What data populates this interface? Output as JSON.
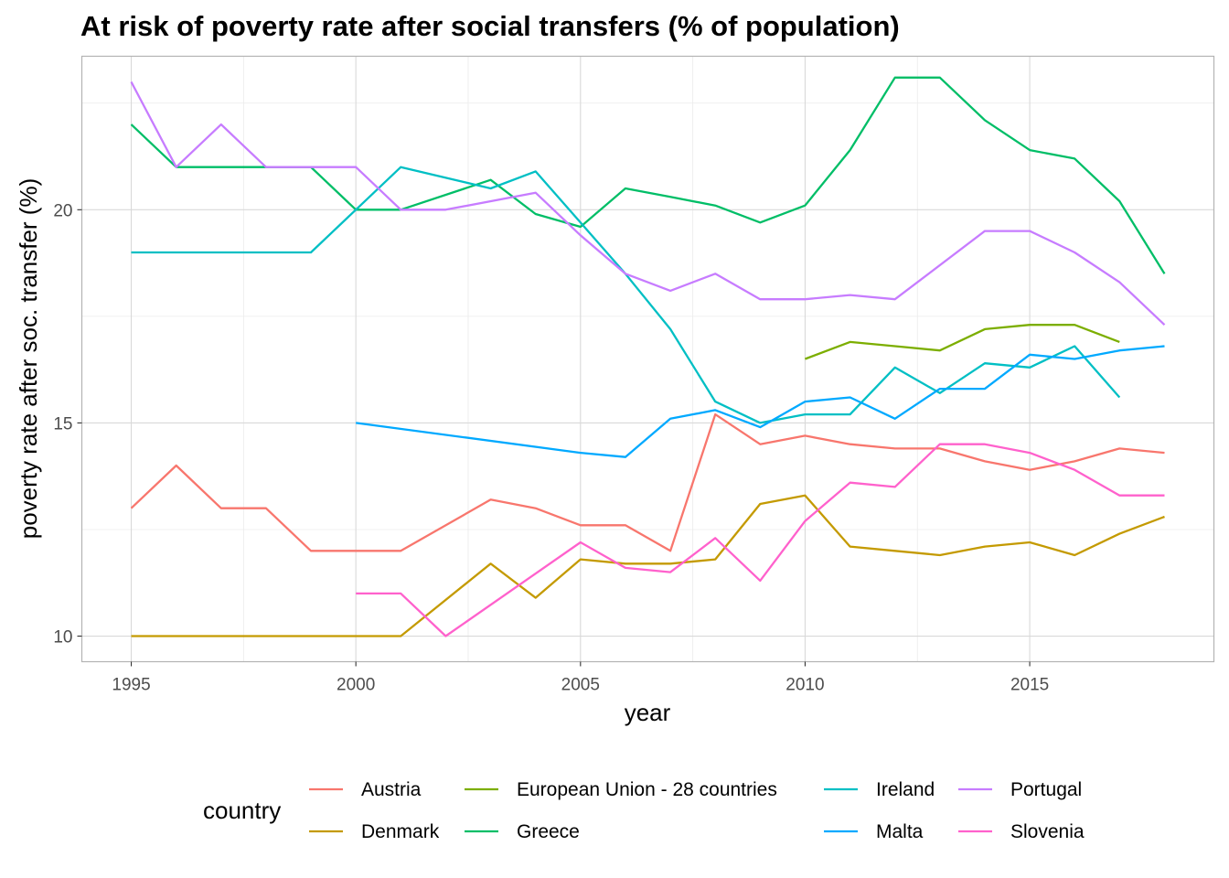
{
  "chart_data": {
    "type": "line",
    "title": "At risk of poverty rate after social transfers (% of population)",
    "xlabel": "year",
    "ylabel": "poverty rate after soc. transfer (%)",
    "x_ticks": [
      1995,
      2000,
      2005,
      2010,
      2015
    ],
    "y_ticks": [
      10,
      15,
      20
    ],
    "xlim": [
      1993.9,
      2019.1
    ],
    "ylim": [
      9.4,
      23.6
    ],
    "grid": true,
    "legend": {
      "title": "country",
      "position": "bottom"
    },
    "series": [
      {
        "name": "Austria",
        "color": "#F8766D",
        "points": [
          [
            1995,
            13
          ],
          [
            1996,
            14
          ],
          [
            1997,
            13
          ],
          [
            1998,
            13
          ],
          [
            1999,
            12
          ],
          [
            2000,
            12
          ],
          [
            2001,
            12
          ],
          [
            2003,
            13.2
          ],
          [
            2004,
            13
          ],
          [
            2005,
            12.6
          ],
          [
            2006,
            12.6
          ],
          [
            2007,
            12
          ],
          [
            2008,
            15.2
          ],
          [
            2009,
            14.5
          ],
          [
            2010,
            14.7
          ],
          [
            2011,
            14.5
          ],
          [
            2012,
            14.4
          ],
          [
            2013,
            14.4
          ],
          [
            2014,
            14.1
          ],
          [
            2015,
            13.9
          ],
          [
            2016,
            14.1
          ],
          [
            2017,
            14.4
          ],
          [
            2018,
            14.3
          ]
        ]
      },
      {
        "name": "Denmark",
        "color": "#C49A00",
        "points": [
          [
            1995,
            10
          ],
          [
            1996,
            10
          ],
          [
            1997,
            10
          ],
          [
            1998,
            10
          ],
          [
            1999,
            10
          ],
          [
            2000,
            10
          ],
          [
            2001,
            10
          ],
          [
            2003,
            11.7
          ],
          [
            2004,
            10.9
          ],
          [
            2005,
            11.8
          ],
          [
            2006,
            11.7
          ],
          [
            2007,
            11.7
          ],
          [
            2008,
            11.8
          ],
          [
            2009,
            13.1
          ],
          [
            2010,
            13.3
          ],
          [
            2011,
            12.1
          ],
          [
            2012,
            12
          ],
          [
            2013,
            11.9
          ],
          [
            2014,
            12.1
          ],
          [
            2015,
            12.2
          ],
          [
            2016,
            11.9
          ],
          [
            2017,
            12.4
          ],
          [
            2018,
            12.8
          ]
        ]
      },
      {
        "name": "European Union - 28 countries",
        "color": "#7CAE00",
        "points": [
          [
            2010,
            16.5
          ],
          [
            2011,
            16.9
          ],
          [
            2012,
            16.8
          ],
          [
            2013,
            16.7
          ],
          [
            2014,
            17.2
          ],
          [
            2015,
            17.3
          ],
          [
            2016,
            17.3
          ],
          [
            2017,
            16.9
          ]
        ]
      },
      {
        "name": "Greece",
        "color": "#00BE67",
        "points": [
          [
            1995,
            22
          ],
          [
            1996,
            21
          ],
          [
            1997,
            21
          ],
          [
            1998,
            21
          ],
          [
            1999,
            21
          ],
          [
            2000,
            20
          ],
          [
            2001,
            20
          ],
          [
            2003,
            20.7
          ],
          [
            2004,
            19.9
          ],
          [
            2005,
            19.6
          ],
          [
            2006,
            20.5
          ],
          [
            2007,
            20.3
          ],
          [
            2008,
            20.1
          ],
          [
            2009,
            19.7
          ],
          [
            2010,
            20.1
          ],
          [
            2011,
            21.4
          ],
          [
            2012,
            23.1
          ],
          [
            2013,
            23.1
          ],
          [
            2014,
            22.1
          ],
          [
            2015,
            21.4
          ],
          [
            2016,
            21.2
          ],
          [
            2017,
            20.2
          ],
          [
            2018,
            18.5
          ]
        ]
      },
      {
        "name": "Ireland",
        "color": "#00BFC4",
        "points": [
          [
            1995,
            19
          ],
          [
            1996,
            19
          ],
          [
            1997,
            19
          ],
          [
            1998,
            19
          ],
          [
            1999,
            19
          ],
          [
            2000,
            20
          ],
          [
            2001,
            21
          ],
          [
            2003,
            20.5
          ],
          [
            2004,
            20.9
          ],
          [
            2005,
            19.7
          ],
          [
            2006,
            18.5
          ],
          [
            2007,
            17.2
          ],
          [
            2008,
            15.5
          ],
          [
            2009,
            15
          ],
          [
            2010,
            15.2
          ],
          [
            2011,
            15.2
          ],
          [
            2012,
            16.3
          ],
          [
            2013,
            15.7
          ],
          [
            2014,
            16.4
          ],
          [
            2015,
            16.3
          ],
          [
            2016,
            16.8
          ],
          [
            2017,
            15.6
          ]
        ]
      },
      {
        "name": "Malta",
        "color": "#00A9FF",
        "points": [
          [
            2000,
            15
          ],
          [
            2005,
            14.3
          ],
          [
            2006,
            14.2
          ],
          [
            2007,
            15.1
          ],
          [
            2008,
            15.3
          ],
          [
            2009,
            14.9
          ],
          [
            2010,
            15.5
          ],
          [
            2011,
            15.6
          ],
          [
            2012,
            15.1
          ],
          [
            2013,
            15.8
          ],
          [
            2014,
            15.8
          ],
          [
            2015,
            16.6
          ],
          [
            2016,
            16.5
          ],
          [
            2017,
            16.7
          ],
          [
            2018,
            16.8
          ]
        ]
      },
      {
        "name": "Portugal",
        "color": "#C77CFF",
        "points": [
          [
            1995,
            23
          ],
          [
            1996,
            21
          ],
          [
            1997,
            22
          ],
          [
            1998,
            21
          ],
          [
            1999,
            21
          ],
          [
            2000,
            21
          ],
          [
            2001,
            20
          ],
          [
            2002,
            20
          ],
          [
            2004,
            20.4
          ],
          [
            2005,
            19.4
          ],
          [
            2006,
            18.5
          ],
          [
            2007,
            18.1
          ],
          [
            2008,
            18.5
          ],
          [
            2009,
            17.9
          ],
          [
            2010,
            17.9
          ],
          [
            2011,
            18
          ],
          [
            2012,
            17.9
          ],
          [
            2014,
            19.5
          ],
          [
            2015,
            19.5
          ],
          [
            2016,
            19
          ],
          [
            2017,
            18.3
          ],
          [
            2018,
            17.3
          ]
        ]
      },
      {
        "name": "Slovenia",
        "color": "#FF61CC",
        "points": [
          [
            2000,
            11
          ],
          [
            2001,
            11
          ],
          [
            2002,
            10
          ],
          [
            2005,
            12.2
          ],
          [
            2006,
            11.6
          ],
          [
            2007,
            11.5
          ],
          [
            2008,
            12.3
          ],
          [
            2009,
            11.3
          ],
          [
            2010,
            12.7
          ],
          [
            2011,
            13.6
          ],
          [
            2012,
            13.5
          ],
          [
            2013,
            14.5
          ],
          [
            2014,
            14.5
          ],
          [
            2015,
            14.3
          ],
          [
            2016,
            13.9
          ],
          [
            2017,
            13.3
          ],
          [
            2018,
            13.3
          ]
        ]
      }
    ]
  }
}
